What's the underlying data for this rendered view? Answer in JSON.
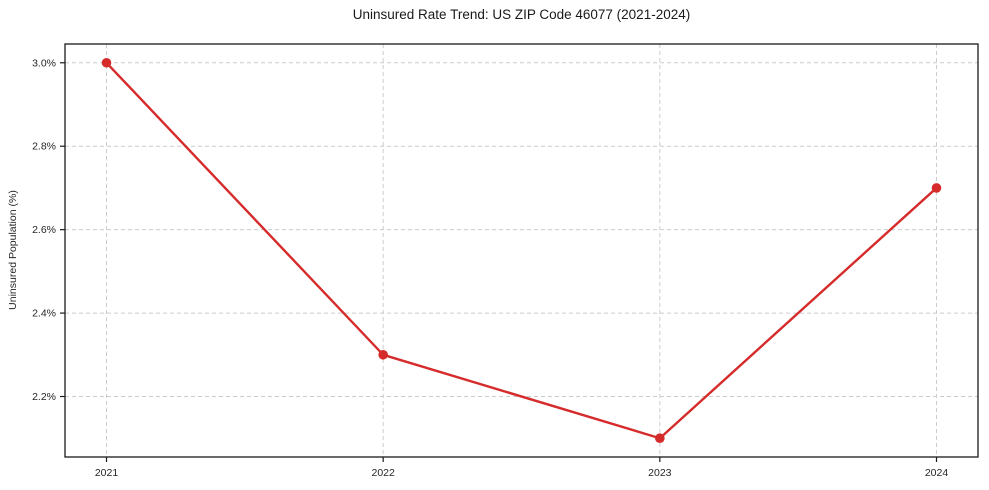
{
  "figure": {
    "background": "#ffffff"
  },
  "chart_data": {
    "type": "line",
    "title": "Uninsured Rate Trend: US ZIP Code 46077 (2021-2024)",
    "xlabel": "",
    "ylabel": "Uninsured Population (%)",
    "x": [
      2021,
      2022,
      2023,
      2024
    ],
    "x_tick_labels": [
      "2021",
      "2022",
      "2023",
      "2024"
    ],
    "y_ticks": [
      2.2,
      2.4,
      2.6,
      2.8,
      3.0
    ],
    "y_tick_labels": [
      "2.2%",
      "2.4%",
      "2.6%",
      "2.8%",
      "3.0%"
    ],
    "series": [
      {
        "values": [
          3.0,
          2.3,
          2.1,
          2.7
        ],
        "color": "#d62b2b",
        "marker": "circle"
      }
    ],
    "xlim": [
      2020.85,
      2024.15
    ],
    "ylim": [
      2.055,
      3.045
    ],
    "grid": true,
    "grid_style": "dashed",
    "grid_color": "#cccccc",
    "axis_color": "#1a1a1a",
    "text_color": "#262626",
    "legend": false
  }
}
